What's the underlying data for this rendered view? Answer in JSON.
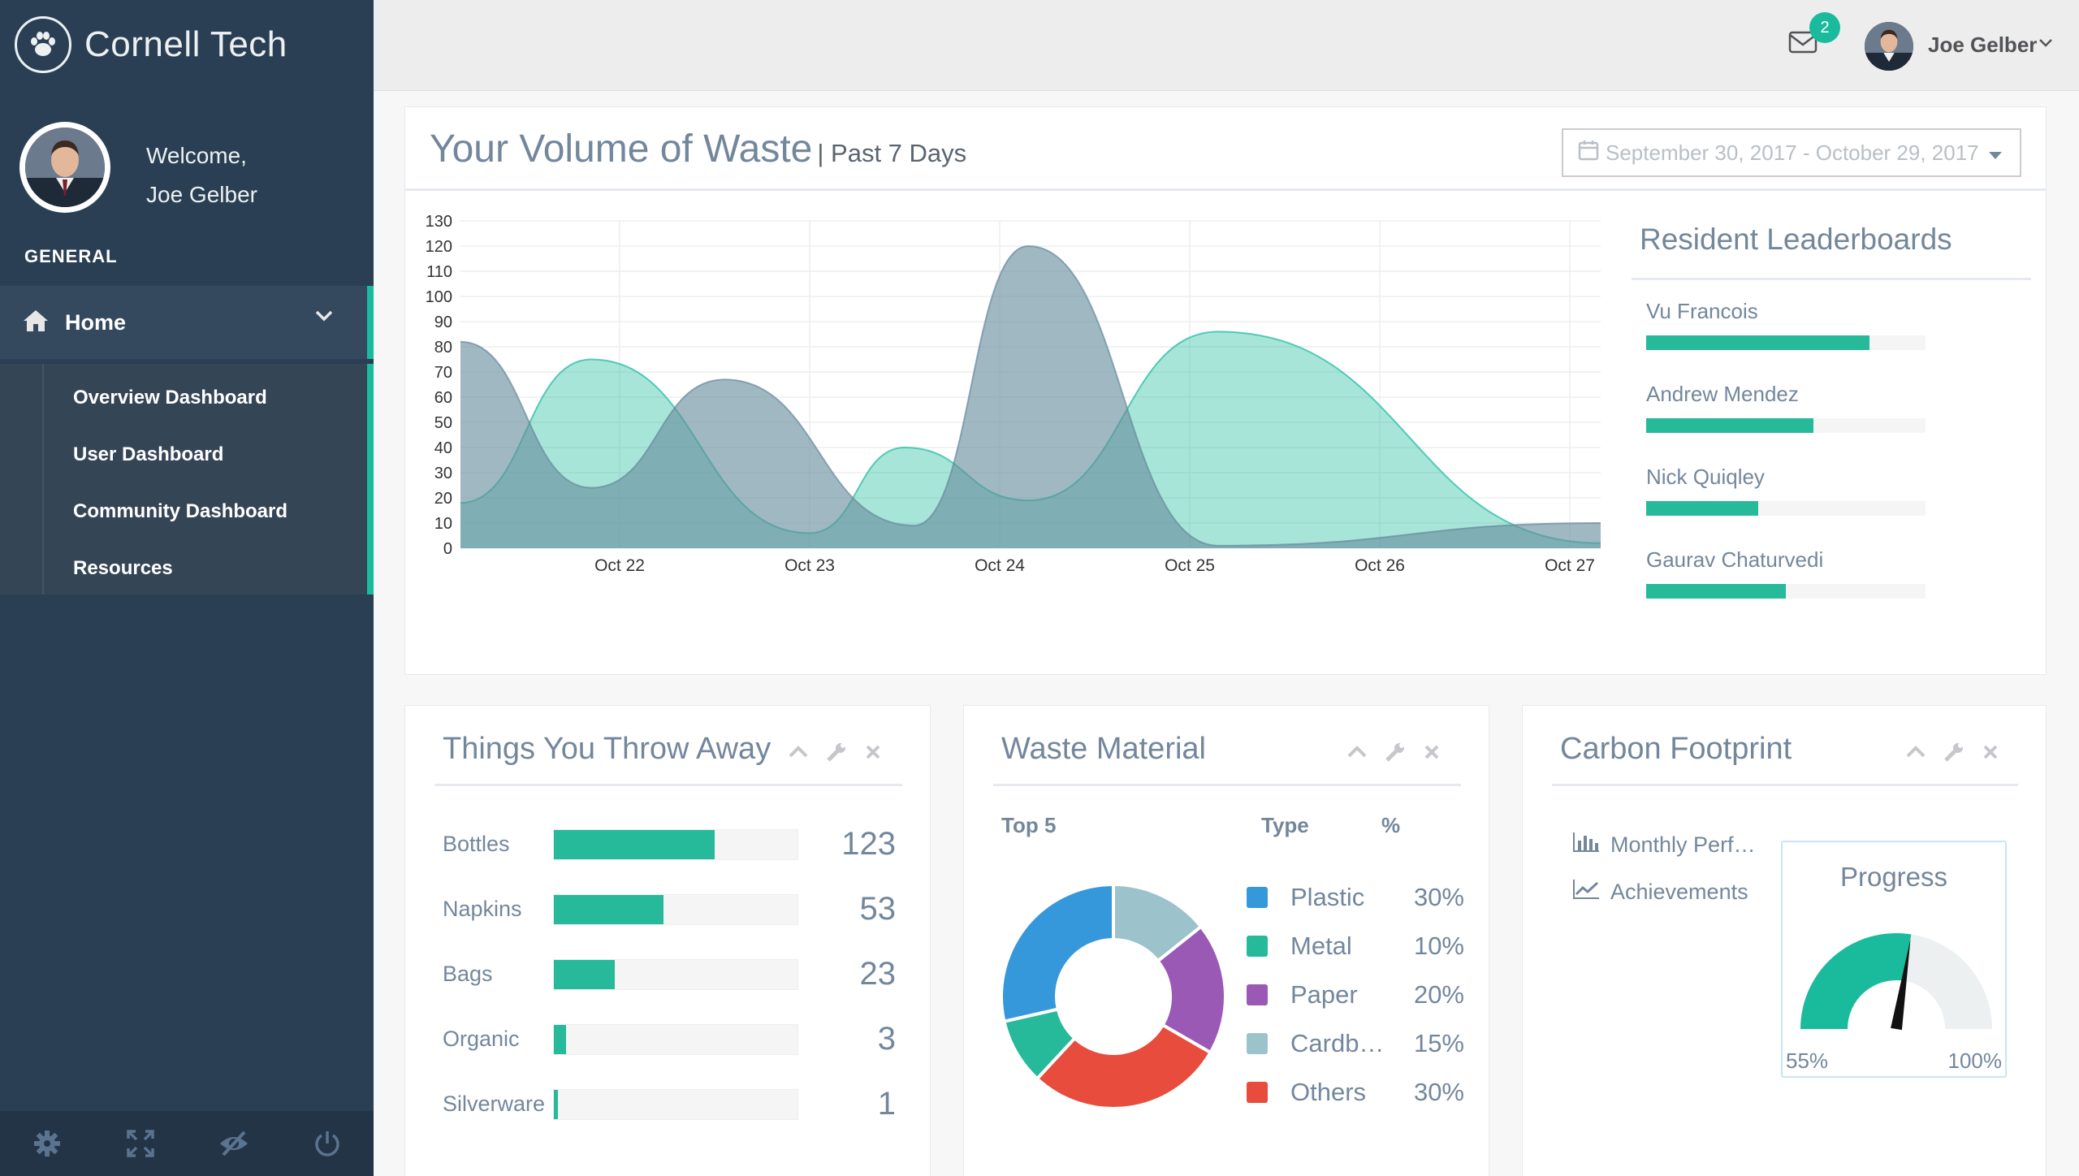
{
  "sidebar": {
    "brand": "Cornell Tech",
    "welcome": "Welcome,",
    "user_name": "Joe Gelber",
    "section": "GENERAL",
    "home": "Home",
    "submenu": [
      "Overview Dashboard",
      "User Dashboard",
      "Community Dashboard",
      "Resources"
    ],
    "footer_icons": [
      "gear-icon",
      "fullscreen-icon",
      "eye-slash-icon",
      "power-icon"
    ]
  },
  "topnav": {
    "mail_count": "2",
    "user_name": "Joe Gelber"
  },
  "main_chart": {
    "title": "Your Volume of Waste",
    "subtitle": "| Past 7 Days",
    "date_range": "September 30, 2017 - October 29, 2017",
    "chart_data": {
      "type": "area",
      "x_labels": [
        "Oct 22",
        "Oct 23",
        "Oct 24",
        "Oct 25",
        "Oct 26",
        "Oct 27"
      ],
      "y_ticks": [
        0,
        10,
        20,
        30,
        40,
        50,
        60,
        70,
        80,
        90,
        100,
        110,
        120,
        130
      ],
      "ylim": [
        0,
        130
      ],
      "grid": true,
      "series": [
        {
          "color": "#1ABB9C",
          "points": [
            [
              0,
              18
            ],
            [
              0.85,
              75
            ],
            [
              2.0,
              6
            ],
            [
              2.5,
              40
            ],
            [
              3.15,
              19
            ],
            [
              4.15,
              86
            ],
            [
              5.15,
              2
            ]
          ]
        },
        {
          "color": "#668C9C",
          "points": [
            [
              0,
              82
            ],
            [
              0.85,
              24
            ],
            [
              1.55,
              67
            ],
            [
              2.55,
              9
            ],
            [
              3.15,
              120
            ],
            [
              4.15,
              1
            ],
            [
              5.15,
              10
            ]
          ]
        }
      ]
    }
  },
  "leaderboard": {
    "title": "Resident Leaderboards",
    "entries": [
      {
        "name": "Vu Francois",
        "value": 80
      },
      {
        "name": "Andrew Mendez",
        "value": 60
      },
      {
        "name": "Nick Quiqley",
        "value": 40
      },
      {
        "name": "Gaurav Chaturvedi",
        "value": 50
      }
    ]
  },
  "throw_away": {
    "title": "Things You Throw Away",
    "items": [
      {
        "label": "Bottles",
        "value": "123",
        "fraction": 0.66
      },
      {
        "label": "Napkins",
        "value": "53",
        "fraction": 0.45
      },
      {
        "label": "Bags",
        "value": "23",
        "fraction": 0.25
      },
      {
        "label": "Organic",
        "value": "3",
        "fraction": 0.05
      },
      {
        "label": "Silverware",
        "value": "1",
        "fraction": 0.015
      }
    ]
  },
  "waste_material": {
    "title": "Waste Material",
    "col_top": "Top 5",
    "col_type": "Type",
    "col_pct": "%",
    "chart_data": {
      "type": "pie",
      "slices": [
        {
          "label": "Plastic",
          "pct": "30%",
          "value": 30,
          "color": "#3498DB"
        },
        {
          "label": "Metal",
          "pct": "10%",
          "value": 10,
          "color": "#26B99A"
        },
        {
          "label": "Paper",
          "pct": "20%",
          "value": 20,
          "color": "#9B59B6"
        },
        {
          "label": "Cardb…",
          "pct": "15%",
          "value": 15,
          "color": "#9CC2CB"
        },
        {
          "label": "Others",
          "pct": "30%",
          "value": 30,
          "color": "#E74C3C"
        }
      ]
    }
  },
  "carbon": {
    "title": "Carbon Footprint",
    "link1": "Monthly Perf…",
    "link2": "Achievements",
    "progress_title": "Progress",
    "gauge_min": "55%",
    "gauge_max": "100%",
    "gauge_value": 0.55
  }
}
